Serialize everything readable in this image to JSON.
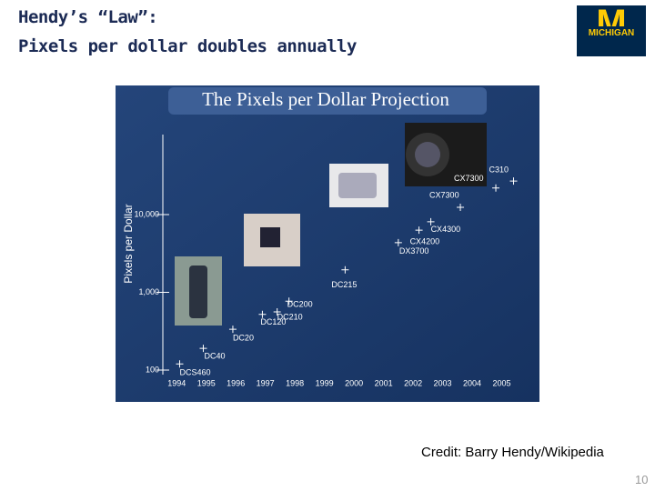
{
  "slide_title": [
    "Hendy’s “Law”:",
    "Pixels per dollar doubles annually"
  ],
  "logo": {
    "letter": "M",
    "text": "MICHIGAN"
  },
  "credit": "Credit: Barry Hendy/Wikipedia",
  "page_number": "10",
  "chart_data": {
    "type": "scatter",
    "title": "The Pixels per Dollar Projection",
    "ylabel": "Pixels per Dollar",
    "x": [
      1994.1,
      1994.9,
      1995.9,
      1996.9,
      1997.4,
      1997.8,
      1999.7,
      2001.5,
      2002.2,
      2002.6,
      2003.6,
      2004.8,
      2005.4
    ],
    "values": [
      120,
      190,
      335,
      520,
      560,
      770,
      1950,
      4360,
      6300,
      8100,
      12400,
      22000,
      27000
    ],
    "labels": [
      "DCS460",
      "DC40",
      "DC20",
      "DC120",
      "DC210",
      "DC200",
      "DC215",
      "DX3700",
      "CX4200",
      "CX4300",
      "CX7300",
      "CX7300",
      "C310"
    ],
    "color": "#ffffff",
    "log_y": true,
    "xlim": [
      1993.5,
      2006
    ],
    "ylim": [
      100,
      100000
    ],
    "xticks": [
      1994,
      1995,
      1996,
      1997,
      1998,
      1999,
      2000,
      2001,
      2002,
      2003,
      2004,
      2005
    ],
    "yticks": [
      100,
      {
        "value": 1000,
        "label": "1,000"
      },
      {
        "value": 10000,
        "label": "10,000"
      }
    ]
  }
}
